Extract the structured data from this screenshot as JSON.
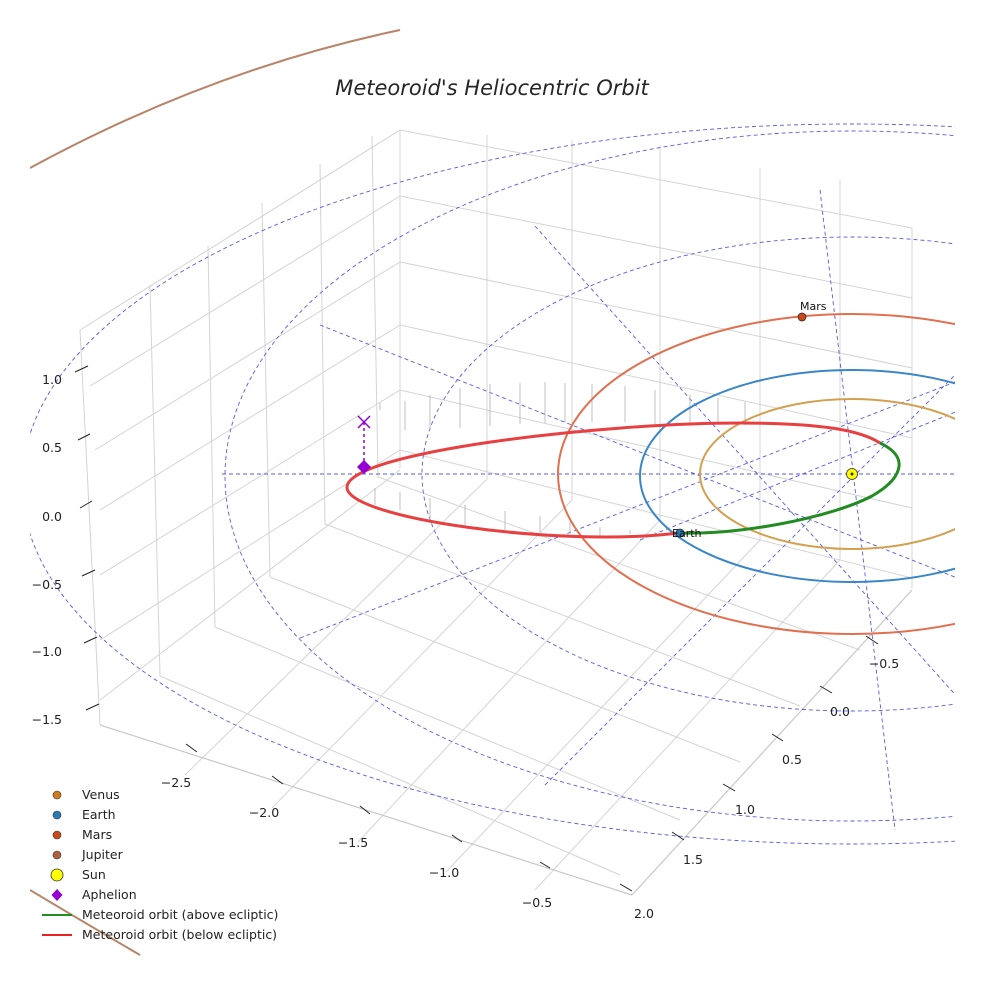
{
  "chart_data": {
    "type": "line",
    "projection": "3d",
    "title": "Meteoroid's Heliocentric Orbit",
    "xlabel": "",
    "ylabel": "",
    "zlabel": "",
    "x_ticks": [
      "−2.5",
      "−2.0",
      "−1.5",
      "−1.0",
      "−0.5"
    ],
    "y_ticks": [
      "−0.5",
      "0.0",
      "0.5",
      "1.0",
      "1.5",
      "2.0"
    ],
    "z_ticks": [
      "1.0",
      "0.5",
      "0.0",
      "−0.5",
      "−1.0",
      "−1.5"
    ],
    "xlim": [
      -2.9,
      0.0
    ],
    "ylim": [
      -0.8,
      2.1
    ],
    "zlim": [
      -1.6,
      1.2
    ],
    "grid": true,
    "planet_labels": {
      "earth": "Earth",
      "mars": "Mars"
    },
    "planets": [
      {
        "name": "Venus",
        "orbit_radius_au": 0.72,
        "color": "#d4a050"
      },
      {
        "name": "Earth",
        "orbit_radius_au": 1.0,
        "color": "#3a86c8"
      },
      {
        "name": "Mars",
        "orbit_radius_au": 1.52,
        "color": "#e07050"
      },
      {
        "name": "Jupiter",
        "orbit_radius_au": 5.2,
        "color": "#b88468"
      }
    ],
    "sun": {
      "name": "Sun",
      "position": [
        0,
        0,
        0
      ],
      "color": "#ffff00"
    },
    "meteoroid_orbit": {
      "perihelion_au": 0.33,
      "aphelion_au": 2.5,
      "aphelion_point": [
        -2.5,
        0.0,
        0.0
      ],
      "aphelion_marker_height": 0.45,
      "above_color": "#228b22",
      "below_color": "#e82222"
    },
    "legend": [
      {
        "label": "Venus",
        "marker": "dot",
        "color": "#d07a20"
      },
      {
        "label": "Earth",
        "marker": "dot",
        "color": "#2a7ab8"
      },
      {
        "label": "Mars",
        "marker": "dot",
        "color": "#c84a1a"
      },
      {
        "label": "Jupiter",
        "marker": "dot",
        "color": "#b0603a"
      },
      {
        "label": "Sun",
        "marker": "big-dot",
        "color": "#ffff00"
      },
      {
        "label": "Aphelion",
        "marker": "diamond",
        "color": "#9400d3"
      },
      {
        "label": "Meteoroid orbit (above ecliptic)",
        "marker": "line",
        "color": "#228b22"
      },
      {
        "label": "Meteoroid orbit (below ecliptic)",
        "marker": "line",
        "color": "#e82222"
      }
    ],
    "legend_location": "lower-left"
  }
}
